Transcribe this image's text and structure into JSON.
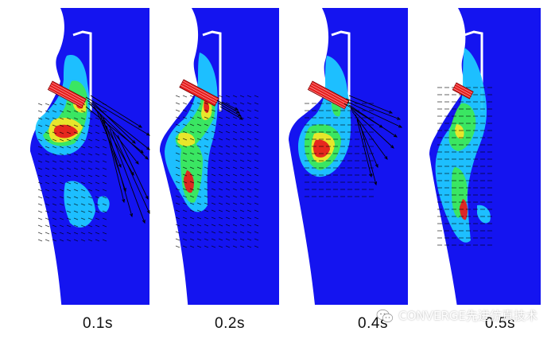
{
  "colors": {
    "domain": "#1414f0",
    "background": "#ffffff",
    "low": "#1ec8ff",
    "mid": "#3ce85a",
    "high": "#f0e628",
    "peak": "#e61e1e",
    "vector": "#000000"
  },
  "panels": [
    {
      "label": "0.1s",
      "injector_tilt_deg": 28,
      "spray_extent": "long"
    },
    {
      "label": "0.2s",
      "injector_tilt_deg": 28,
      "spray_extent": "short"
    },
    {
      "label": "0.4s",
      "injector_tilt_deg": 28,
      "spray_extent": "medium"
    },
    {
      "label": "0.5s",
      "injector_tilt_deg": 28,
      "spray_extent": "none"
    }
  ],
  "watermark": {
    "icon": "wechat-icon",
    "text": "CONVERGE先进仿真技术"
  }
}
